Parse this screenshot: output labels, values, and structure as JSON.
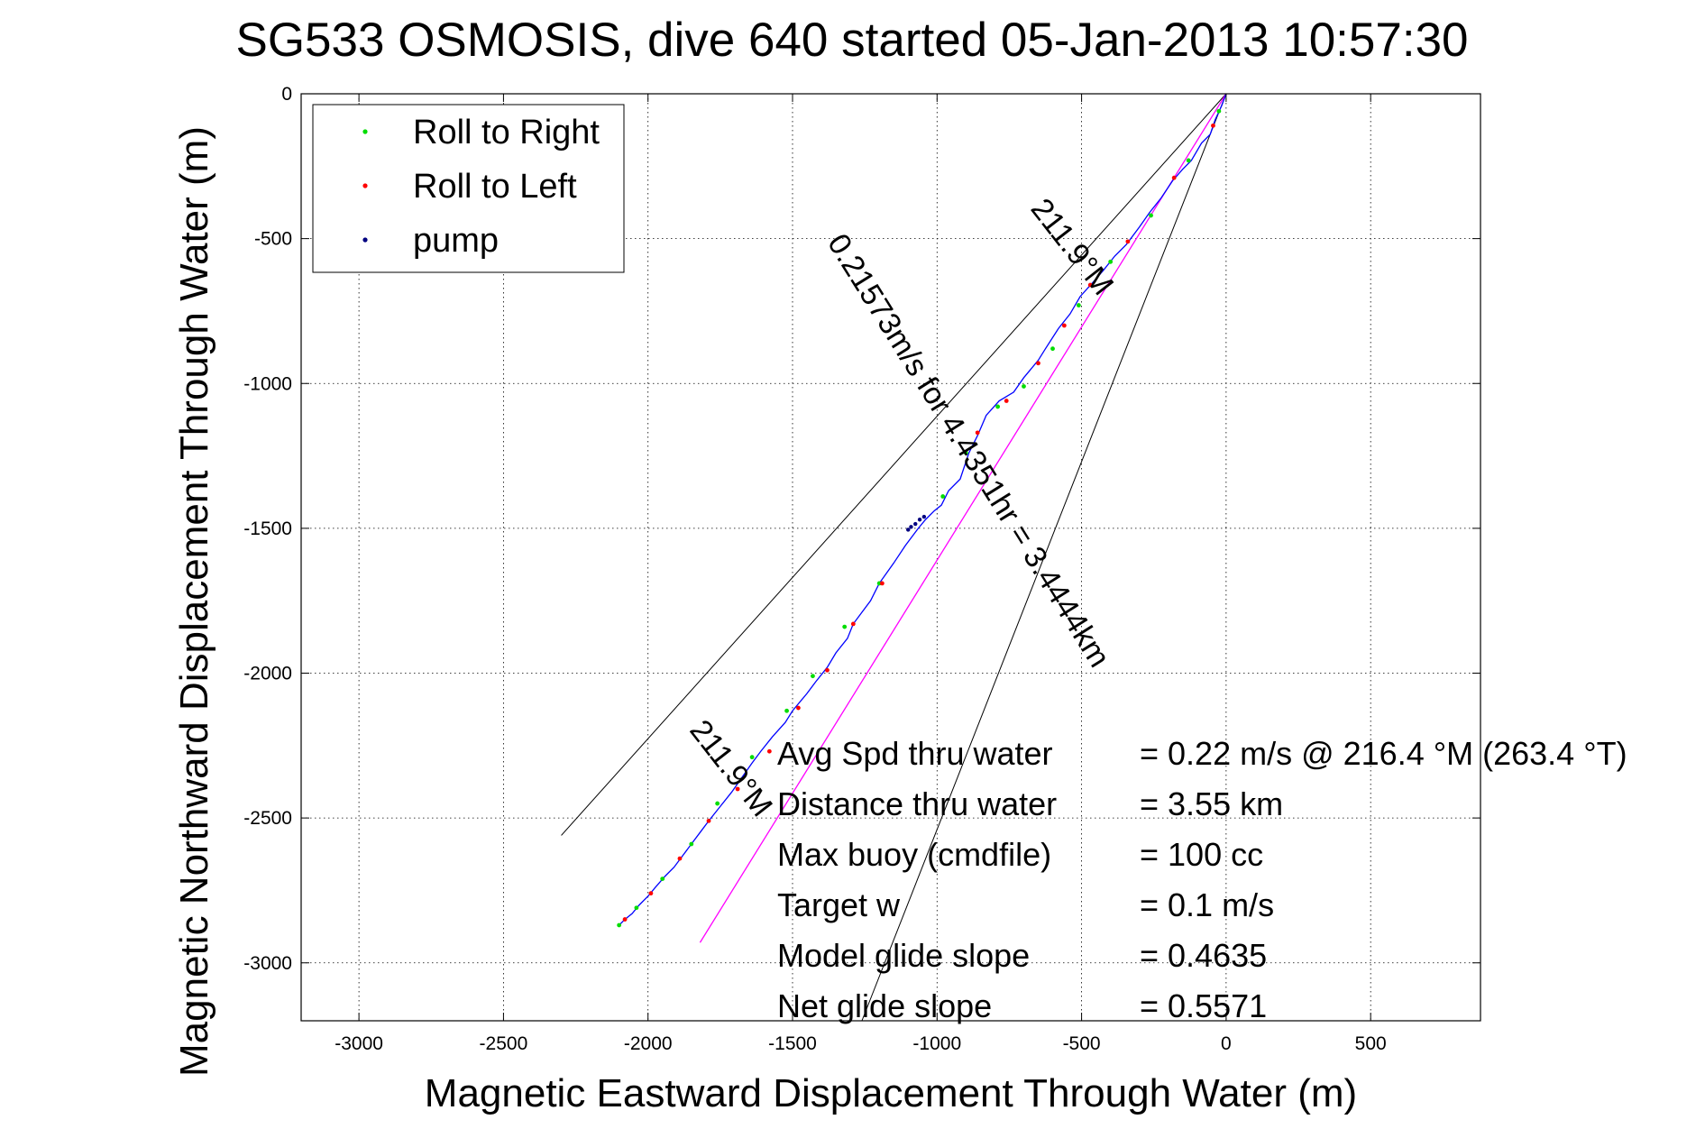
{
  "chart_data": {
    "type": "scatter",
    "title": "SG533 OSMOSIS, dive 640 started 05-Jan-2013 10:57:30",
    "xlabel": "Magnetic Eastward Displacement Through Water (m)",
    "ylabel": "Magnetic Northward Displacement Through Water (m)",
    "xlim": [
      -3200,
      880
    ],
    "ylim": [
      -3200,
      0
    ],
    "xticks": [
      -3000,
      -2500,
      -2000,
      -1500,
      -1000,
      -500,
      0,
      500
    ],
    "yticks": [
      0,
      -500,
      -1000,
      -1500,
      -2000,
      -2500,
      -3000
    ],
    "grid": true,
    "legend_position": "top-left",
    "legend": [
      {
        "label": "Roll to Right",
        "color": "#00dd00"
      },
      {
        "label": "Roll to Left",
        "color": "#ff0000"
      },
      {
        "label": "pump",
        "color": "#000080"
      }
    ],
    "track": {
      "name": "track",
      "color": "#0000ff",
      "x": [
        0,
        -15,
        -38,
        -55,
        -85,
        -120,
        -150,
        -185,
        -225,
        -265,
        -300,
        -345,
        -385,
        -425,
        -460,
        -505,
        -540,
        -580,
        -625,
        -650,
        -700,
        -735,
        -785,
        -830,
        -860,
        -890,
        -920,
        -960,
        -985,
        -1010,
        -1040,
        -1065,
        -1110,
        -1150,
        -1200,
        -1230,
        -1260,
        -1290,
        -1310,
        -1350,
        -1380,
        -1420,
        -1450,
        -1500,
        -1525,
        -1570,
        -1610,
        -1640,
        -1675,
        -1710,
        -1750,
        -1790,
        -1820,
        -1850,
        -1880,
        -1910,
        -1940,
        -1975,
        -2000,
        -2030,
        -2055,
        -2080,
        -2100
      ],
      "y": [
        0,
        -40,
        -90,
        -140,
        -170,
        -230,
        -260,
        -300,
        -360,
        -410,
        -460,
        -520,
        -560,
        -610,
        -650,
        -700,
        -760,
        -810,
        -880,
        -920,
        -980,
        -1030,
        -1060,
        -1110,
        -1180,
        -1240,
        -1330,
        -1370,
        -1420,
        -1440,
        -1470,
        -1500,
        -1560,
        -1620,
        -1690,
        -1750,
        -1790,
        -1830,
        -1880,
        -1930,
        -1980,
        -2030,
        -2070,
        -2130,
        -2170,
        -2220,
        -2270,
        -2310,
        -2360,
        -2410,
        -2460,
        -2510,
        -2550,
        -2590,
        -2630,
        -2670,
        -2700,
        -2740,
        -2770,
        -2800,
        -2830,
        -2850,
        -2870
      ]
    },
    "roll_to_right": {
      "x": [
        -25,
        -130,
        -260,
        -400,
        -510,
        -600,
        -700,
        -790,
        -900,
        -980,
        -1200,
        -1320,
        -1430,
        -1520,
        -1640,
        -1760,
        -1850,
        -1950,
        -2040,
        -2100
      ],
      "y": [
        -60,
        -230,
        -420,
        -580,
        -730,
        -880,
        -1010,
        -1080,
        -1240,
        -1390,
        -1690,
        -1840,
        -2010,
        -2130,
        -2290,
        -2450,
        -2590,
        -2710,
        -2810,
        -2870
      ]
    },
    "roll_to_left": {
      "x": [
        -45,
        -180,
        -340,
        -470,
        -560,
        -650,
        -760,
        -860,
        -1190,
        -1290,
        -1380,
        -1480,
        -1580,
        -1690,
        -1790,
        -1890,
        -1990,
        -2080
      ],
      "y": [
        -110,
        -290,
        -510,
        -660,
        -800,
        -930,
        -1060,
        -1170,
        -1690,
        -1830,
        -1990,
        -2120,
        -2270,
        -2400,
        -2510,
        -2640,
        -2760,
        -2850
      ]
    },
    "pump": {
      "x": [
        -1045,
        -1060,
        -1075,
        -1090,
        -1100
      ],
      "y": [
        -1460,
        -1470,
        -1485,
        -1495,
        -1505
      ]
    },
    "avg_heading_line": {
      "color": "#ff00ff",
      "x": [
        0,
        -1820
      ],
      "y": [
        0,
        -2930
      ]
    },
    "reference_lines": [
      {
        "x": [
          0,
          -2300
        ],
        "y": [
          0,
          -2560
        ]
      },
      {
        "x": [
          0,
          -1260
        ],
        "y": [
          0,
          -3200
        ]
      }
    ],
    "annotations": [
      {
        "text": "211.9°M",
        "x": -560,
        "y": -550,
        "rotation": 52
      },
      {
        "text": "0.21573m/s for 4.4351hr = 3.4444km",
        "x": -920,
        "y": -1250,
        "rotation": 58
      },
      {
        "text": "211.9°M",
        "x": -1740,
        "y": -2350,
        "rotation": 52
      }
    ],
    "info_box": [
      {
        "label": "Avg Spd thru water",
        "value": "=  0.22 m/s @ 216.4 °M (263.4 °T)"
      },
      {
        "label": "Distance thru water",
        "value": "=  3.55 km"
      },
      {
        "label": "Max buoy (cmdfile)",
        "value": "= 100 cc"
      },
      {
        "label": "Target w",
        "value": "= 0.1 m/s"
      },
      {
        "label": "Model glide slope",
        "value": "= 0.4635"
      },
      {
        "label": "Net glide slope",
        "value": "= 0.5571"
      }
    ]
  }
}
